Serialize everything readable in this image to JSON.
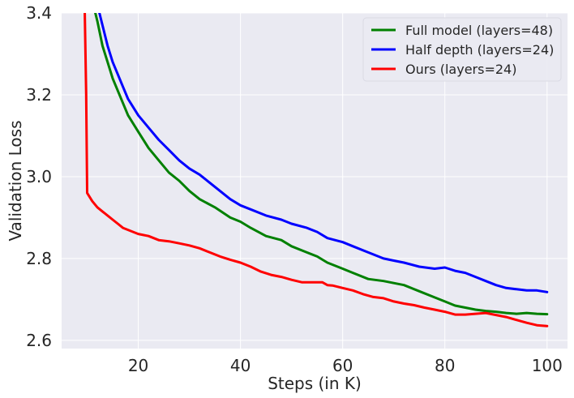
{
  "chart_data": {
    "type": "line",
    "title": "",
    "xlabel": "Steps (in K)",
    "ylabel": "Validation Loss",
    "xlim": [
      5,
      104
    ],
    "ylim": [
      2.58,
      3.4
    ],
    "xticks": [
      20,
      40,
      60,
      80,
      100
    ],
    "yticks": [
      2.6,
      2.8,
      3.0,
      3.2,
      3.4
    ],
    "xtick_labels": [
      "20",
      "40",
      "60",
      "80",
      "100"
    ],
    "ytick_labels": [
      "2.6",
      "2.8",
      "3.0",
      "3.2",
      "3.4"
    ],
    "grid": true,
    "legend_position": "top-right",
    "background": "#eaeaf2",
    "series": [
      {
        "name": "Full model (layers=48)",
        "color": "#008000",
        "points": [
          [
            11,
            3.43
          ],
          [
            12,
            3.38
          ],
          [
            13,
            3.32
          ],
          [
            14,
            3.28
          ],
          [
            15,
            3.24
          ],
          [
            16,
            3.21
          ],
          [
            17,
            3.18
          ],
          [
            18,
            3.15
          ],
          [
            20,
            3.11
          ],
          [
            22,
            3.07
          ],
          [
            24,
            3.04
          ],
          [
            26,
            3.01
          ],
          [
            28,
            2.99
          ],
          [
            30,
            2.965
          ],
          [
            32,
            2.945
          ],
          [
            35,
            2.925
          ],
          [
            38,
            2.9
          ],
          [
            40,
            2.89
          ],
          [
            42,
            2.875
          ],
          [
            45,
            2.855
          ],
          [
            48,
            2.845
          ],
          [
            50,
            2.83
          ],
          [
            53,
            2.815
          ],
          [
            55,
            2.805
          ],
          [
            57,
            2.79
          ],
          [
            60,
            2.775
          ],
          [
            62,
            2.765
          ],
          [
            65,
            2.75
          ],
          [
            68,
            2.745
          ],
          [
            70,
            2.74
          ],
          [
            72,
            2.735
          ],
          [
            75,
            2.72
          ],
          [
            78,
            2.705
          ],
          [
            80,
            2.695
          ],
          [
            82,
            2.685
          ],
          [
            84,
            2.68
          ],
          [
            86,
            2.675
          ],
          [
            88,
            2.672
          ],
          [
            90,
            2.67
          ],
          [
            92,
            2.667
          ],
          [
            94,
            2.665
          ],
          [
            96,
            2.667
          ],
          [
            98,
            2.665
          ],
          [
            100,
            2.664
          ]
        ]
      },
      {
        "name": "Half depth (layers=24)",
        "color": "#0000ff",
        "points": [
          [
            12,
            3.42
          ],
          [
            13,
            3.37
          ],
          [
            14,
            3.32
          ],
          [
            15,
            3.28
          ],
          [
            16,
            3.25
          ],
          [
            17,
            3.22
          ],
          [
            18,
            3.19
          ],
          [
            20,
            3.15
          ],
          [
            22,
            3.12
          ],
          [
            24,
            3.09
          ],
          [
            26,
            3.065
          ],
          [
            28,
            3.04
          ],
          [
            30,
            3.02
          ],
          [
            32,
            3.005
          ],
          [
            35,
            2.975
          ],
          [
            38,
            2.945
          ],
          [
            40,
            2.93
          ],
          [
            42,
            2.92
          ],
          [
            45,
            2.905
          ],
          [
            48,
            2.895
          ],
          [
            50,
            2.885
          ],
          [
            53,
            2.875
          ],
          [
            55,
            2.865
          ],
          [
            57,
            2.85
          ],
          [
            60,
            2.84
          ],
          [
            62,
            2.83
          ],
          [
            65,
            2.815
          ],
          [
            68,
            2.8
          ],
          [
            70,
            2.795
          ],
          [
            72,
            2.79
          ],
          [
            75,
            2.78
          ],
          [
            78,
            2.775
          ],
          [
            80,
            2.778
          ],
          [
            82,
            2.77
          ],
          [
            84,
            2.765
          ],
          [
            86,
            2.755
          ],
          [
            88,
            2.745
          ],
          [
            90,
            2.735
          ],
          [
            92,
            2.728
          ],
          [
            94,
            2.725
          ],
          [
            96,
            2.722
          ],
          [
            98,
            2.722
          ],
          [
            100,
            2.718
          ]
        ]
      },
      {
        "name": "Ours (layers=24)",
        "color": "#ff0000",
        "points": [
          [
            9.5,
            3.42
          ],
          [
            9.8,
            3.2
          ],
          [
            10.0,
            2.96
          ],
          [
            11,
            2.94
          ],
          [
            12,
            2.925
          ],
          [
            13,
            2.915
          ],
          [
            14,
            2.905
          ],
          [
            15,
            2.895
          ],
          [
            16,
            2.885
          ],
          [
            17,
            2.875
          ],
          [
            18,
            2.87
          ],
          [
            20,
            2.86
          ],
          [
            22,
            2.855
          ],
          [
            24,
            2.845
          ],
          [
            26,
            2.842
          ],
          [
            28,
            2.837
          ],
          [
            30,
            2.832
          ],
          [
            32,
            2.825
          ],
          [
            34,
            2.815
          ],
          [
            36,
            2.805
          ],
          [
            38,
            2.797
          ],
          [
            40,
            2.79
          ],
          [
            42,
            2.78
          ],
          [
            44,
            2.768
          ],
          [
            46,
            2.76
          ],
          [
            48,
            2.755
          ],
          [
            50,
            2.748
          ],
          [
            52,
            2.742
          ],
          [
            54,
            2.742
          ],
          [
            56,
            2.742
          ],
          [
            57,
            2.735
          ],
          [
            58,
            2.734
          ],
          [
            60,
            2.728
          ],
          [
            62,
            2.722
          ],
          [
            64,
            2.713
          ],
          [
            66,
            2.706
          ],
          [
            68,
            2.703
          ],
          [
            70,
            2.695
          ],
          [
            72,
            2.69
          ],
          [
            74,
            2.686
          ],
          [
            76,
            2.68
          ],
          [
            78,
            2.675
          ],
          [
            80,
            2.67
          ],
          [
            82,
            2.663
          ],
          [
            84,
            2.663
          ],
          [
            86,
            2.665
          ],
          [
            88,
            2.667
          ],
          [
            90,
            2.662
          ],
          [
            92,
            2.657
          ],
          [
            94,
            2.65
          ],
          [
            96,
            2.643
          ],
          [
            98,
            2.637
          ],
          [
            100,
            2.635
          ]
        ]
      }
    ]
  }
}
